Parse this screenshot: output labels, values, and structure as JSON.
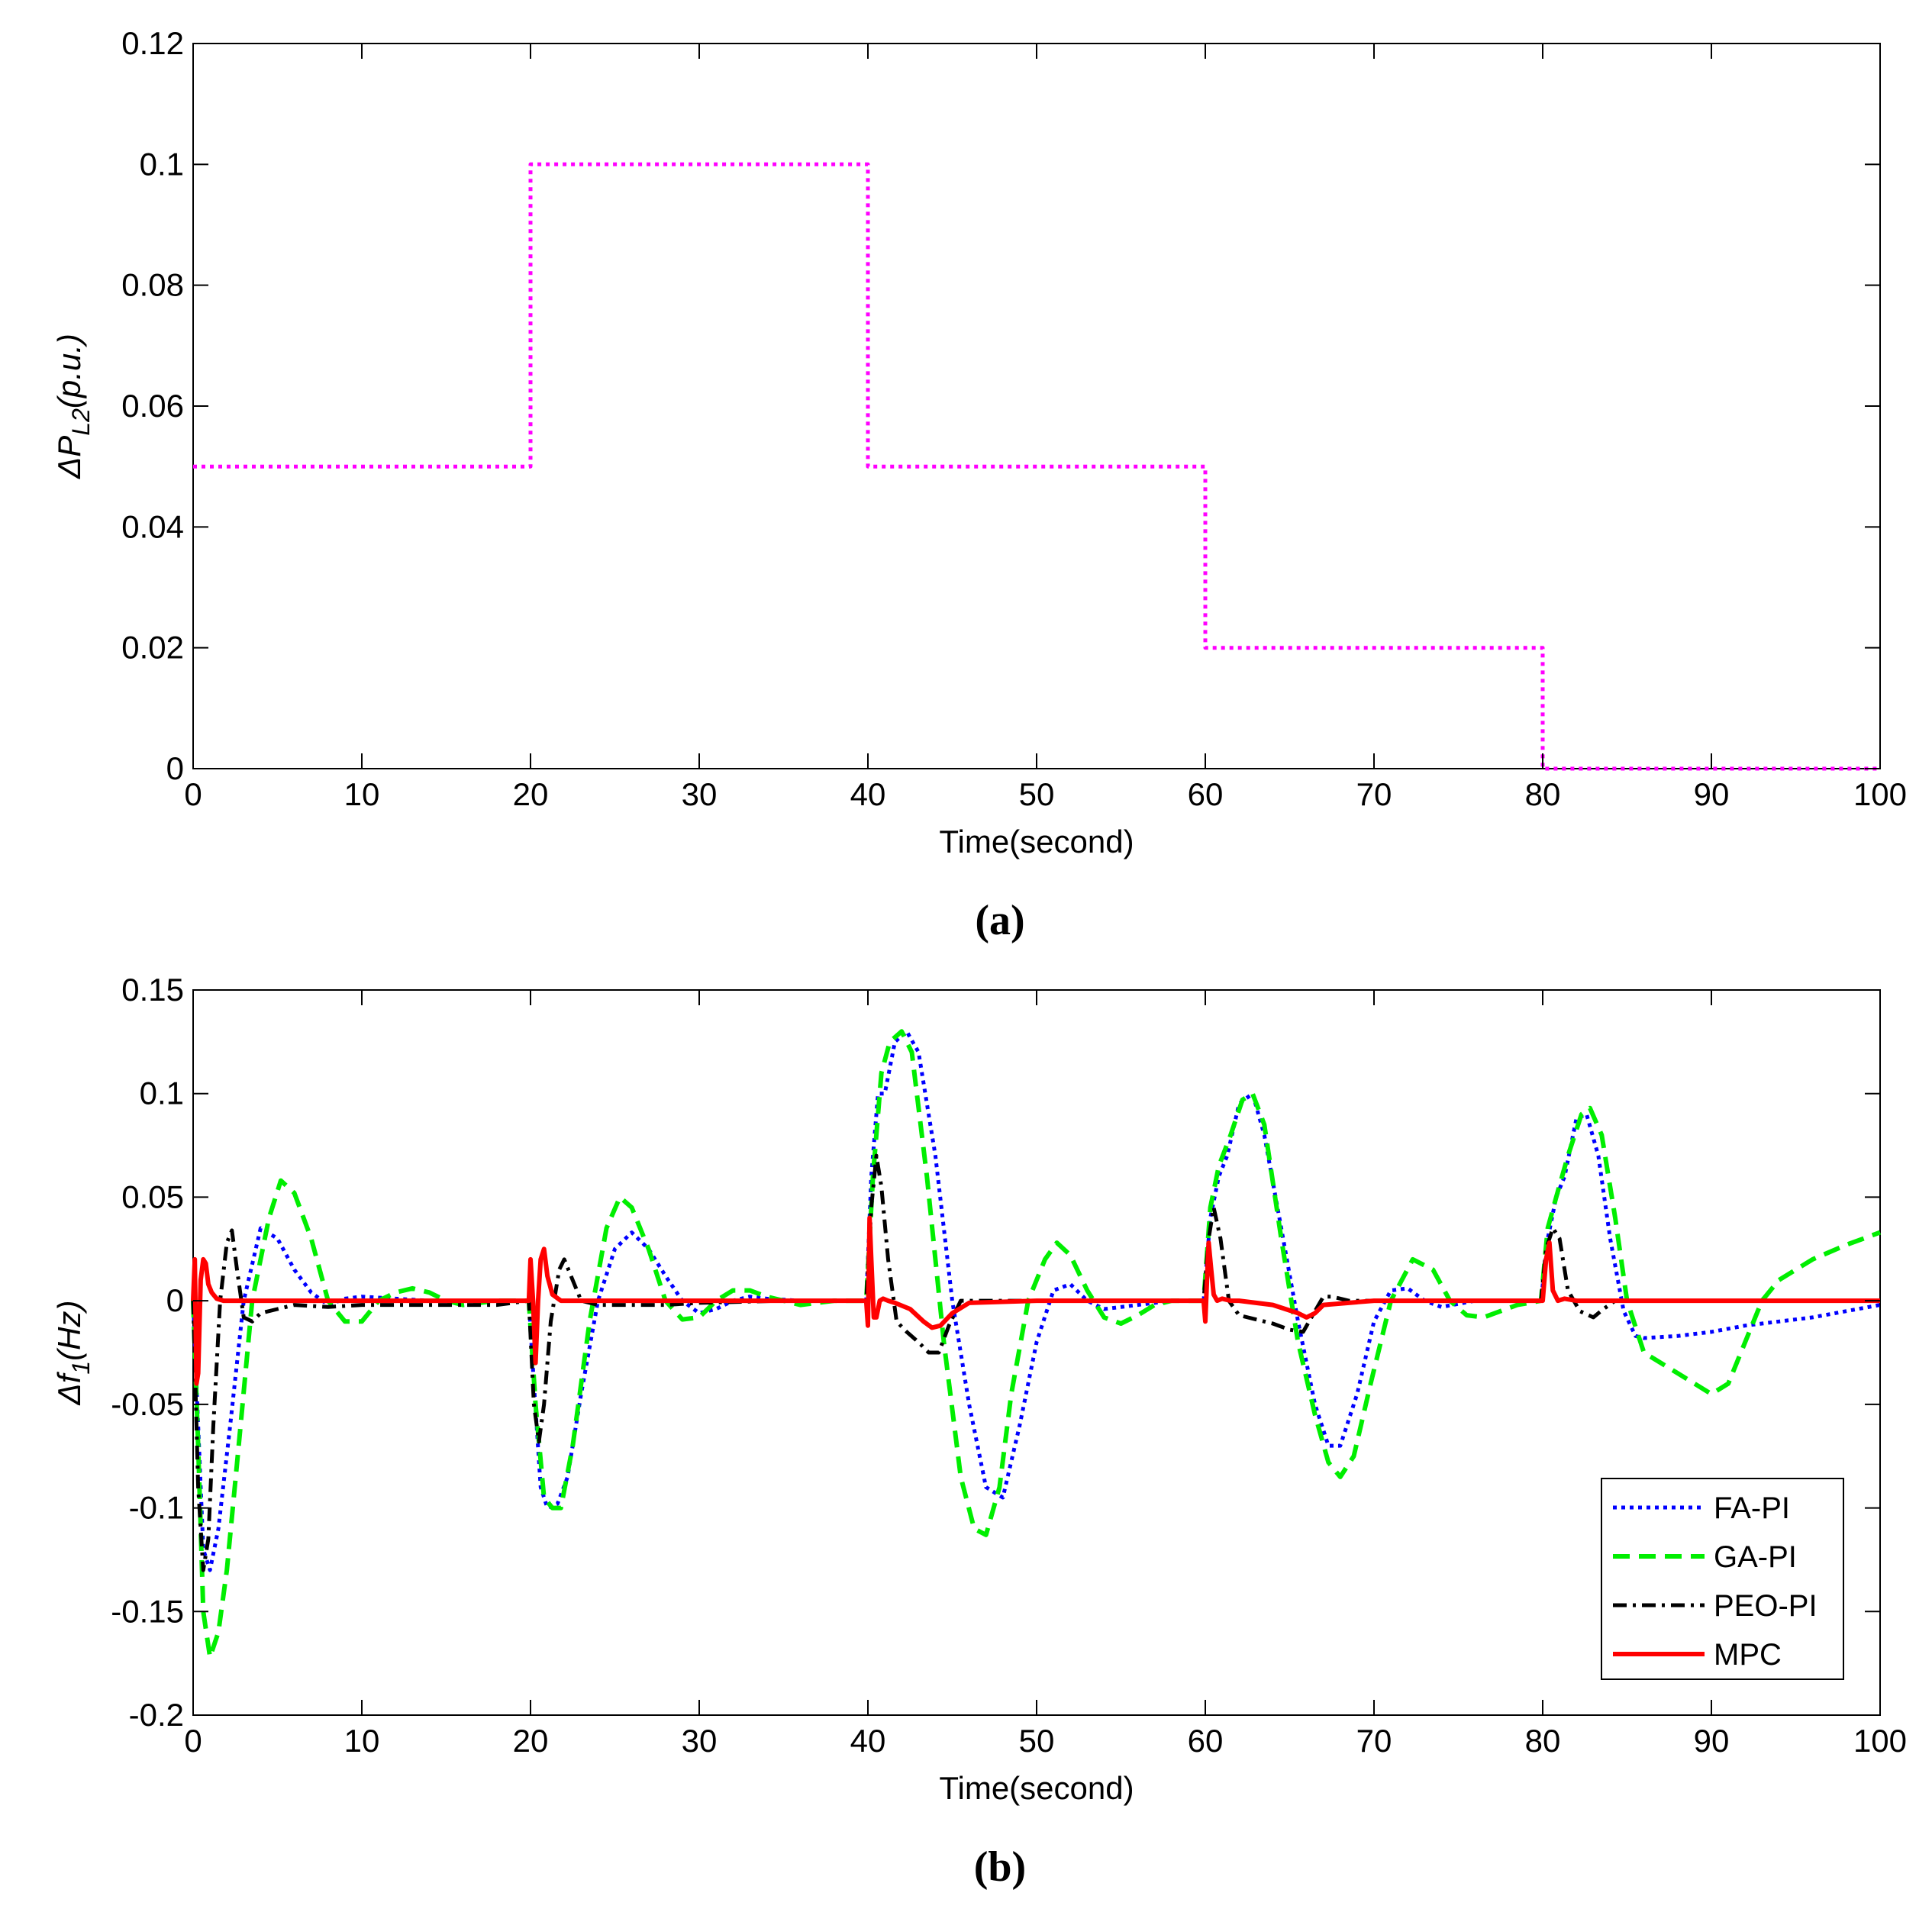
{
  "chart_data": [
    {
      "type": "line",
      "panel_label": "(a)",
      "xlabel": "Time(second)",
      "ylabel": "ΔP_L2(p.u.)",
      "ylabel_main": "ΔP",
      "ylabel_sub": "L2",
      "ylabel_tail": "(p.u.)",
      "xlim": [
        0,
        100
      ],
      "ylim": [
        0,
        0.12
      ],
      "xticks": [
        0,
        10,
        20,
        30,
        40,
        50,
        60,
        70,
        80,
        90,
        100
      ],
      "yticks": [
        0,
        0.02,
        0.04,
        0.06,
        0.08,
        0.1,
        0.12
      ],
      "xtick_labels": [
        "0",
        "10",
        "20",
        "30",
        "40",
        "50",
        "60",
        "70",
        "80",
        "90",
        "100"
      ],
      "ytick_labels": [
        "0",
        "0.02",
        "0.04",
        "0.06",
        "0.08",
        "0.1",
        "0.12"
      ],
      "series": [
        {
          "name": "ΔP_L2",
          "color": "#ff00ff",
          "style": "dotted",
          "x": [
            0,
            20,
            20,
            40,
            40,
            60,
            60,
            80,
            80,
            100
          ],
          "y": [
            0.05,
            0.05,
            0.1,
            0.1,
            0.05,
            0.05,
            0.02,
            0.02,
            0,
            0
          ]
        }
      ]
    },
    {
      "type": "line",
      "panel_label": "(b)",
      "xlabel": "Time(second)",
      "ylabel": "Δf_1(Hz)",
      "ylabel_main": "Δf",
      "ylabel_sub": "1",
      "ylabel_tail": "(Hz)",
      "xlim": [
        0,
        100
      ],
      "ylim": [
        -0.2,
        0.15
      ],
      "xticks": [
        0,
        10,
        20,
        30,
        40,
        50,
        60,
        70,
        80,
        90,
        100
      ],
      "yticks": [
        -0.2,
        -0.15,
        -0.1,
        -0.05,
        0,
        0.05,
        0.1,
        0.15
      ],
      "xtick_labels": [
        "0",
        "10",
        "20",
        "30",
        "40",
        "50",
        "60",
        "70",
        "80",
        "90",
        "100"
      ],
      "ytick_labels": [
        "-0.2",
        "-0.15",
        "-0.1",
        "-0.05",
        "0",
        "0.05",
        "0.1",
        "0.15"
      ],
      "legend": [
        "FA-PI",
        "GA-PI",
        "PEO-PI",
        "MPC"
      ],
      "legend_position": "bottom-right",
      "series": [
        {
          "name": "FA-PI",
          "color": "#0000ff",
          "style": "dotted",
          "x": [
            0,
            0.3,
            0.6,
            1.0,
            1.5,
            2.2,
            3,
            4,
            5,
            6,
            7,
            8,
            9,
            10,
            12,
            14,
            16,
            18,
            19.9,
            20.2,
            20.6,
            21,
            21.6,
            22.2,
            23,
            24,
            25,
            26,
            27,
            28,
            29,
            30,
            31,
            32,
            33,
            34,
            36,
            38,
            39.9,
            40.2,
            40.6,
            41.0,
            41.6,
            42.3,
            43,
            44,
            45,
            46,
            47,
            48,
            49,
            50,
            51,
            52,
            53,
            54,
            56,
            58,
            59.9,
            60.3,
            60.8,
            61.3,
            62,
            62.8,
            63.5,
            64.5,
            65.5,
            66.5,
            67.3,
            68,
            69,
            70,
            71,
            72,
            73,
            74,
            76,
            78,
            79.9,
            80.3,
            80.8,
            81.3,
            82,
            82.6,
            83.3,
            84,
            84.8,
            85.5,
            86,
            88,
            90,
            92,
            94,
            96,
            98,
            100
          ],
          "y": [
            0,
            -0.06,
            -0.12,
            -0.13,
            -0.11,
            -0.06,
            0.0,
            0.035,
            0.03,
            0.015,
            0.004,
            -0.002,
            0.001,
            0.002,
            0.001,
            0.0,
            0.0,
            0.0,
            0.0,
            -0.04,
            -0.09,
            -0.1,
            -0.098,
            -0.085,
            -0.045,
            0.0,
            0.025,
            0.033,
            0.025,
            0.012,
            0.0,
            -0.006,
            -0.004,
            0.0,
            0.002,
            0.001,
            0.0,
            0.0,
            0.0,
            0.06,
            0.1,
            0.1,
            0.125,
            0.13,
            0.12,
            0.07,
            0.0,
            -0.05,
            -0.09,
            -0.095,
            -0.06,
            -0.02,
            0.005,
            0.008,
            0.0,
            -0.004,
            -0.002,
            0.0,
            0.0,
            0.04,
            0.06,
            0.07,
            0.095,
            0.1,
            0.08,
            0.035,
            -0.01,
            -0.05,
            -0.07,
            -0.07,
            -0.045,
            -0.01,
            0.005,
            0.006,
            0.0,
            -0.003,
            0.0,
            0.0,
            0.0,
            0.03,
            0.05,
            0.06,
            0.088,
            0.09,
            0.07,
            0.03,
            -0.005,
            -0.017,
            -0.018,
            -0.017,
            -0.015,
            -0.012,
            -0.01,
            -0.008,
            -0.005,
            -0.002
          ]
        },
        {
          "name": "GA-PI",
          "color": "#00ee00",
          "style": "dashed",
          "x": [
            0,
            0.3,
            0.6,
            1.0,
            1.5,
            2.0,
            2.7,
            3.5,
            4.5,
            5.2,
            6,
            7,
            8,
            9,
            10,
            11,
            12,
            13,
            14,
            15,
            16,
            18,
            19.9,
            20.3,
            20.8,
            21.3,
            21.8,
            22.5,
            23.5,
            24.5,
            25.3,
            26,
            27,
            28,
            29,
            30,
            31,
            32,
            33,
            34,
            35,
            36,
            38,
            39.9,
            40.3,
            40.8,
            41.3,
            42,
            42.6,
            43.5,
            44.5,
            45.5,
            46.3,
            47,
            47.8,
            48.5,
            49.5,
            50.5,
            51.2,
            52,
            53,
            54,
            55,
            56,
            57,
            58,
            59.9,
            60.3,
            60.8,
            61.5,
            62.2,
            62.8,
            63.5,
            64.5,
            65.5,
            66.5,
            67.3,
            68,
            68.8,
            69.8,
            71,
            72.3,
            73.5,
            74.5,
            75.5,
            76.5,
            77.5,
            78.5,
            79.9,
            80.3,
            80.8,
            81.5,
            82.3,
            82.8,
            83.5,
            84.3,
            85,
            86,
            88,
            90,
            91,
            92,
            93,
            94,
            96,
            98,
            100
          ],
          "y": [
            0,
            -0.07,
            -0.15,
            -0.172,
            -0.16,
            -0.13,
            -0.07,
            0.0,
            0.04,
            0.058,
            0.052,
            0.03,
            0.0,
            -0.01,
            -0.01,
            0.0,
            0.004,
            0.006,
            0.004,
            0.0,
            -0.002,
            0.0,
            0.0,
            -0.05,
            -0.095,
            -0.1,
            -0.1,
            -0.07,
            -0.01,
            0.035,
            0.05,
            0.045,
            0.025,
            0.0,
            -0.009,
            -0.008,
            0.0,
            0.005,
            0.005,
            0.002,
            0.0,
            -0.002,
            0.0,
            0.0,
            0.06,
            0.11,
            0.125,
            0.13,
            0.12,
            0.06,
            -0.02,
            -0.085,
            -0.11,
            -0.113,
            -0.09,
            -0.045,
            0.0,
            0.02,
            0.028,
            0.022,
            0.005,
            -0.008,
            -0.011,
            -0.007,
            -0.002,
            0.0,
            0.0,
            0.045,
            0.065,
            0.08,
            0.097,
            0.1,
            0.085,
            0.03,
            -0.02,
            -0.055,
            -0.078,
            -0.085,
            -0.075,
            -0.04,
            0.0,
            0.02,
            0.015,
            0.0,
            -0.007,
            -0.008,
            -0.005,
            -0.002,
            0.0,
            0.035,
            0.05,
            0.07,
            0.09,
            0.093,
            0.08,
            0.04,
            0.0,
            -0.025,
            -0.035,
            -0.045,
            -0.04,
            -0.02,
            0.0,
            0.01,
            0.02,
            0.027,
            0.033
          ]
        },
        {
          "name": "PEO-PI",
          "color": "#000000",
          "style": "dashdot",
          "x": [
            0,
            0.3,
            0.6,
            0.9,
            1.2,
            1.6,
            2.0,
            2.3,
            2.6,
            3.0,
            3.5,
            4.0,
            5,
            6,
            8,
            10,
            12,
            14,
            16,
            18,
            19.9,
            20.2,
            20.5,
            20.8,
            21.2,
            21.7,
            22.0,
            22.4,
            23,
            24,
            26,
            28,
            30,
            35,
            39.9,
            40.2,
            40.5,
            40.8,
            41.2,
            41.7,
            42.3,
            43,
            43.6,
            44.2,
            44.8,
            45.5,
            46,
            50,
            55,
            59.9,
            60.2,
            60.5,
            60.9,
            61.4,
            62,
            63,
            64,
            65,
            65.8,
            66.5,
            67,
            67.5,
            68.5,
            70,
            75,
            79.9,
            80.2,
            80.6,
            81.0,
            81.5,
            82.2,
            83,
            83.6,
            84.3,
            85,
            87
          ],
          "y": [
            0,
            -0.09,
            -0.13,
            -0.115,
            -0.06,
            0.0,
            0.028,
            0.034,
            0.015,
            -0.008,
            -0.01,
            -0.006,
            -0.004,
            -0.002,
            -0.003,
            -0.002,
            -0.002,
            -0.002,
            -0.002,
            -0.002,
            0.0,
            -0.05,
            -0.068,
            -0.05,
            -0.01,
            0.015,
            0.02,
            0.012,
            0.0,
            -0.002,
            -0.002,
            -0.002,
            -0.001,
            0.0,
            0.0,
            0.045,
            0.07,
            0.055,
            0.02,
            -0.01,
            -0.015,
            -0.02,
            -0.025,
            -0.025,
            -0.012,
            0.0,
            0.0,
            0.0,
            0.0,
            0.0,
            0.03,
            0.045,
            0.03,
            0.0,
            -0.007,
            -0.009,
            -0.011,
            -0.014,
            -0.015,
            -0.005,
            0.002,
            0.002,
            0.0,
            0.0,
            0.0,
            0.0,
            0.025,
            0.035,
            0.03,
            0.005,
            -0.005,
            -0.008,
            -0.004,
            0.0,
            0.0,
            0.0
          ]
        },
        {
          "name": "MPC",
          "color": "#ff0000",
          "style": "solid",
          "x": [
            0,
            0.1,
            0.2,
            0.3,
            0.45,
            0.6,
            0.75,
            0.9,
            1.1,
            1.4,
            1.8,
            3,
            10,
            19.9,
            20.0,
            20.15,
            20.3,
            20.45,
            20.6,
            20.8,
            21.0,
            21.3,
            21.8,
            23,
            30,
            39.9,
            40.0,
            40.1,
            40.2,
            40.35,
            40.5,
            40.7,
            40.9,
            41.2,
            41.6,
            42.5,
            43.3,
            43.8,
            44.3,
            45,
            46,
            50,
            59.9,
            60.0,
            60.1,
            60.2,
            60.35,
            60.5,
            60.7,
            61.0,
            61.5,
            62,
            64,
            65.5,
            66,
            66.5,
            67,
            70,
            79.9,
            80.0,
            80.2,
            80.4,
            80.6,
            80.9,
            81.3,
            82,
            90,
            100
          ],
          "y": [
            0,
            0.02,
            -0.04,
            -0.035,
            0.01,
            0.02,
            0.018,
            0.008,
            0.004,
            0.001,
            0.0,
            0.0,
            0.0,
            0.0,
            0.02,
            0.0,
            -0.03,
            0.0,
            0.02,
            0.025,
            0.012,
            0.003,
            0.0,
            0.0,
            0.0,
            0.0,
            -0.012,
            0.04,
            0.02,
            -0.008,
            -0.008,
            0.0,
            0.001,
            0.0,
            -0.001,
            -0.004,
            -0.01,
            -0.013,
            -0.012,
            -0.006,
            -0.001,
            0.0,
            0.0,
            -0.01,
            0.01,
            0.028,
            0.015,
            0.003,
            0.0,
            0.001,
            0.0,
            0.0,
            -0.002,
            -0.006,
            -0.008,
            -0.006,
            -0.002,
            0.0,
            0.0,
            0.0,
            0.02,
            0.028,
            0.005,
            0.0,
            0.001,
            0.0,
            0.0,
            0.0
          ]
        }
      ]
    }
  ]
}
